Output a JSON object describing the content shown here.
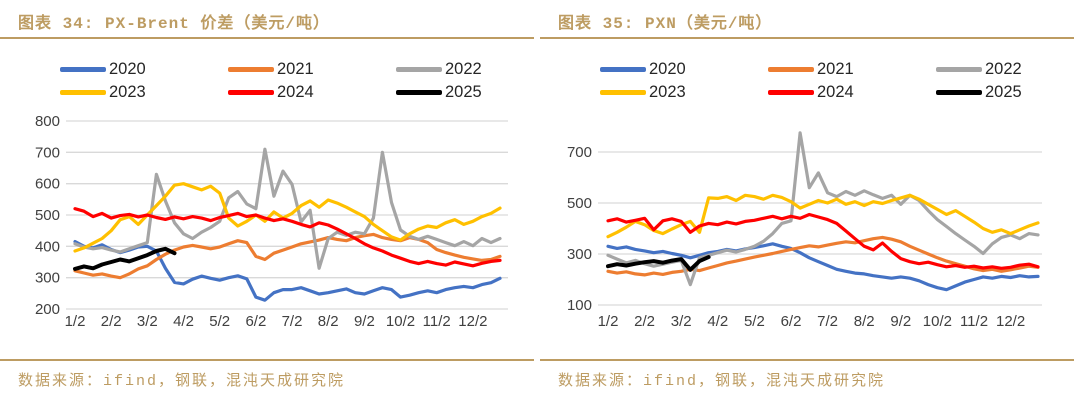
{
  "colors": {
    "accent_tan": "#BD9C62",
    "grid": "#D9D9D9",
    "axis_text": "#404040",
    "legend_text": "#262626"
  },
  "charts": [
    {
      "title": "图表 34: PX-Brent 价差（美元/吨）",
      "source": "数据来源：ifind，钢联，混沌天成研究院",
      "chart_data": {
        "type": "line",
        "x_ticklabels": [
          "1/2",
          "2/2",
          "3/2",
          "4/2",
          "5/2",
          "6/2",
          "7/2",
          "8/2",
          "9/2",
          "10/2",
          "11/2",
          "12/2"
        ],
        "ylim": [
          200,
          800
        ],
        "yticks": [
          800,
          700,
          600,
          500,
          400,
          300,
          200
        ],
        "grid": "horizontal",
        "legend_position": "top",
        "series": [
          {
            "name": "2020",
            "color": "#4472C4",
            "values": [
              415,
              400,
              395,
              405,
              390,
              380,
              388,
              398,
              400,
              385,
              330,
              285,
              280,
              295,
              305,
              298,
              292,
              300,
              306,
              296,
              238,
              228,
              252,
              262,
              262,
              268,
              258,
              248,
              252,
              258,
              264,
              252,
              248,
              258,
              268,
              262,
              238,
              244,
              252,
              258,
              252,
              262,
              268,
              272,
              268,
              278,
              284,
              298
            ]
          },
          {
            "name": "2021",
            "color": "#ED7D31",
            "values": [
              322,
              315,
              308,
              312,
              305,
              300,
              312,
              328,
              338,
              358,
              375,
              388,
              398,
              403,
              398,
              392,
              398,
              408,
              418,
              412,
              368,
              358,
              378,
              388,
              398,
              408,
              414,
              420,
              428,
              422,
              418,
              428,
              434,
              438,
              428,
              422,
              418,
              428,
              422,
              412,
              390,
              380,
              372,
              365,
              360,
              355,
              358,
              368
            ]
          },
          {
            "name": "2022",
            "color": "#A5A5A5",
            "values": [
              408,
              398,
              392,
              396,
              388,
              382,
              392,
              402,
              412,
              630,
              545,
              475,
              440,
              425,
              445,
              460,
              480,
              555,
              575,
              535,
              520,
              710,
              560,
              640,
              598,
              478,
              515,
              330,
              425,
              445,
              435,
              445,
              440,
              490,
              700,
              540,
              452,
              432,
              422,
              432,
              422,
              412,
              402,
              415,
              402,
              425,
              412,
              425
            ]
          },
          {
            "name": "2023",
            "color": "#FFC000",
            "values": [
              385,
              395,
              410,
              425,
              450,
              485,
              495,
              470,
              500,
              530,
              560,
              595,
              600,
              590,
              580,
              592,
              570,
              490,
              465,
              480,
              500,
              480,
              510,
              490,
              505,
              530,
              545,
              525,
              548,
              538,
              525,
              510,
              495,
              470,
              450,
              430,
              420,
              440,
              455,
              465,
              460,
              475,
              485,
              470,
              480,
              495,
              505,
              522
            ]
          },
          {
            "name": "2024",
            "color": "#FF0000",
            "values": [
              520,
              512,
              495,
              505,
              490,
              498,
              502,
              494,
              500,
              492,
              486,
              494,
              488,
              495,
              490,
              482,
              492,
              498,
              505,
              495,
              500,
              490,
              482,
              488,
              480,
              470,
              462,
              475,
              468,
              455,
              440,
              425,
              408,
              395,
              385,
              372,
              362,
              352,
              345,
              352,
              345,
              340,
              350,
              344,
              338,
              346,
              352,
              355
            ]
          },
          {
            "name": "2025",
            "color": "#000000",
            "values": [
              328,
              336,
              330,
              342,
              350,
              358,
              352,
              362,
              372,
              385,
              392,
              378
            ]
          }
        ]
      }
    },
    {
      "title": "图表 35: PXN（美元/吨）",
      "source": "数据来源：ifind，钢联，混沌天成研究院",
      "chart_data": {
        "type": "line",
        "x_ticklabels": [
          "1/2",
          "2/2",
          "3/2",
          "4/2",
          "5/2",
          "6/2",
          "7/2",
          "8/2",
          "9/2",
          "10/2",
          "11/2",
          "12/2"
        ],
        "ylim": [
          100,
          820
        ],
        "yticks": [
          700,
          500,
          300,
          100
        ],
        "grid": "horizontal",
        "legend_position": "top",
        "series": [
          {
            "name": "2020",
            "color": "#4472C4",
            "values": [
              330,
              322,
              328,
              318,
              312,
              305,
              310,
              302,
              295,
              285,
              295,
              305,
              310,
              318,
              312,
              320,
              325,
              332,
              340,
              330,
              322,
              305,
              285,
              270,
              255,
              240,
              232,
              225,
              222,
              215,
              210,
              205,
              210,
              205,
              195,
              180,
              168,
              160,
              175,
              190,
              200,
              210,
              205,
              212,
              208,
              215,
              210,
              212
            ]
          },
          {
            "name": "2021",
            "color": "#ED7D31",
            "values": [
              232,
              225,
              230,
              222,
              218,
              225,
              220,
              228,
              232,
              240,
              235,
              245,
              255,
              265,
              272,
              280,
              288,
              295,
              302,
              310,
              318,
              325,
              332,
              328,
              335,
              342,
              348,
              344,
              352,
              360,
              365,
              358,
              348,
              330,
              315,
              300,
              285,
              272,
              262,
              252,
              242,
              235,
              240,
              232,
              238,
              245,
              252,
              248
            ]
          },
          {
            "name": "2022",
            "color": "#A5A5A5",
            "values": [
              295,
              280,
              265,
              275,
              262,
              252,
              260,
              268,
              275,
              180,
              285,
              295,
              305,
              315,
              308,
              318,
              330,
              350,
              380,
              420,
              430,
              775,
              560,
              618,
              540,
              525,
              545,
              530,
              548,
              532,
              518,
              530,
              495,
              530,
              510,
              470,
              435,
              408,
              380,
              355,
              330,
              302,
              340,
              365,
              375,
              360,
              380,
              375
            ]
          },
          {
            "name": "2023",
            "color": "#FFC000",
            "values": [
              368,
              385,
              405,
              428,
              415,
              392,
              380,
              398,
              415,
              428,
              385,
              520,
              518,
              525,
              510,
              530,
              525,
              515,
              530,
              522,
              505,
              480,
              495,
              510,
              500,
              515,
              495,
              505,
              490,
              505,
              498,
              510,
              520,
              530,
              515,
              495,
              475,
              455,
              470,
              448,
              425,
              400,
              385,
              395,
              380,
              395,
              410,
              422
            ]
          },
          {
            "name": "2024",
            "color": "#FF0000",
            "values": [
              430,
              438,
              425,
              432,
              440,
              395,
              430,
              438,
              428,
              385,
              410,
              420,
              415,
              425,
              418,
              428,
              432,
              440,
              448,
              438,
              448,
              440,
              455,
              445,
              435,
              420,
              390,
              360,
              330,
              316,
              343,
              310,
              282,
              270,
              262,
              268,
              258,
              250,
              255,
              248,
              252,
              245,
              250,
              244,
              248,
              256,
              260,
              250
            ]
          },
          {
            "name": "2025",
            "color": "#000000",
            "values": [
              252,
              260,
              255,
              262,
              268,
              272,
              266,
              274,
              280,
              238,
              272,
              288
            ]
          }
        ]
      }
    }
  ]
}
